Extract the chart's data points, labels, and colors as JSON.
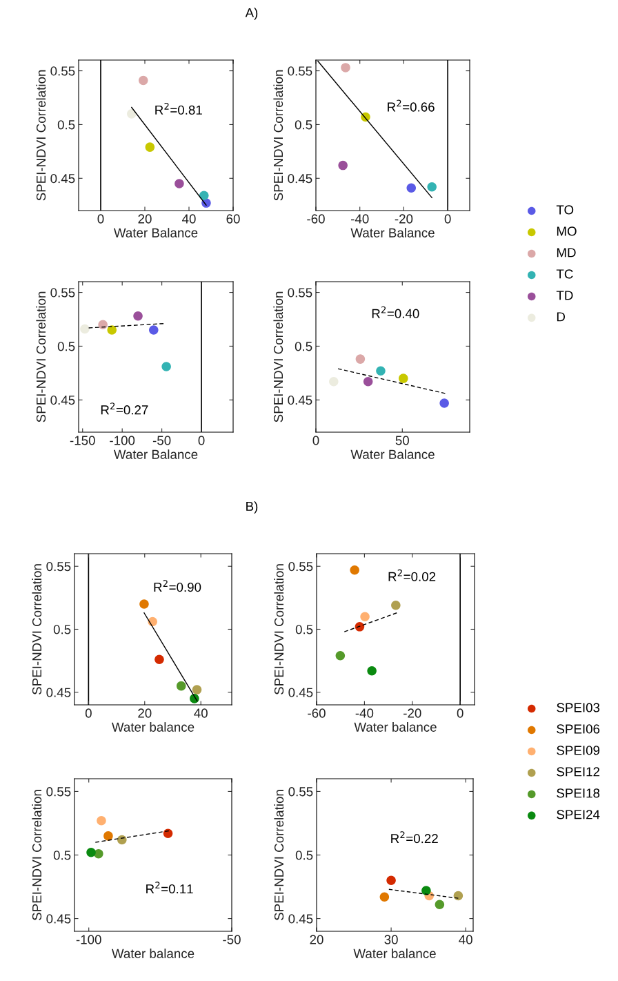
{
  "chart_data": [
    {
      "type": "scatter",
      "xlabel": "Water Balance",
      "ylabel": "SPEI-NDVI Correlation",
      "xlim": [
        -10,
        60
      ],
      "xticks": [
        0,
        20,
        40,
        60
      ],
      "ylim": [
        0.42,
        0.56
      ],
      "yticks": [
        0.45,
        0.5,
        0.55
      ],
      "marker": "circle",
      "grid": false,
      "ref_lines": [
        {
          "axis": "x",
          "value": 0,
          "color": "#000000"
        }
      ],
      "annotations": [
        "A)",
        "R$^{2}$=0.81"
      ],
      "legend": "right",
      "series": [
        {
          "name": "TO",
          "color": "#5a5ae6",
          "x": [
            47.8
          ],
          "values": [
            0.427
          ]
        },
        {
          "name": "MO",
          "color": "#c8c800",
          "x": [
            22.3
          ],
          "values": [
            0.479
          ]
        },
        {
          "name": "MD",
          "color": "#dba8a8",
          "x": [
            19.3
          ],
          "values": [
            0.541
          ]
        },
        {
          "name": "TC",
          "color": "#33b3b3",
          "x": [
            46.8
          ],
          "values": [
            0.434
          ]
        },
        {
          "name": "TD",
          "color": "#9a4f9a",
          "x": [
            35.6
          ],
          "values": [
            0.445
          ]
        },
        {
          "name": "D",
          "color": "#ececdf",
          "x": [
            14.0
          ],
          "values": [
            0.51
          ]
        },
        {
          "type": "line",
          "color": "#000000",
          "line_style": "solid",
          "marker": "none",
          "x": [
            14.0,
            47.8
          ],
          "values": [
            0.516,
            0.425
          ]
        }
      ]
    },
    {
      "type": "scatter",
      "xlabel": "Water Balance",
      "ylabel": "SPEI-NDVI Correlation",
      "xlim": [
        -60,
        10
      ],
      "xticks": [
        -60,
        -40,
        -20,
        0
      ],
      "ylim": [
        0.42,
        0.56
      ],
      "yticks": [
        0.45,
        0.5,
        0.55
      ],
      "marker": "circle",
      "grid": false,
      "ref_lines": [
        {
          "axis": "x",
          "value": 0,
          "color": "#000000"
        }
      ],
      "annotations": [
        "R$^{2}$=0.66"
      ],
      "series": [
        {
          "color": "#5a5ae6",
          "x": [
            -16.6
          ],
          "values": [
            0.441
          ]
        },
        {
          "color": "#c8c800",
          "x": [
            -37.4
          ],
          "values": [
            0.507
          ]
        },
        {
          "color": "#dba8a8",
          "x": [
            -46.5
          ],
          "values": [
            0.553
          ]
        },
        {
          "color": "#33b3b3",
          "x": [
            -7.2
          ],
          "values": [
            0.442
          ]
        },
        {
          "color": "#9a4f9a",
          "x": [
            -47.7
          ],
          "values": [
            0.462
          ]
        },
        {
          "type": "line",
          "color": "#000000",
          "line_style": "solid",
          "marker": "none",
          "x": [
            -59.1,
            -7.2
          ],
          "values": [
            0.559,
            0.432
          ]
        }
      ]
    },
    {
      "type": "scatter",
      "xlabel": "Water Balance",
      "ylabel": "SPEI-NDVI Correlation",
      "xlim": [
        -155,
        40
      ],
      "xticks": [
        -150,
        -100,
        -50,
        0
      ],
      "ylim": [
        0.42,
        0.56
      ],
      "yticks": [
        0.45,
        0.5,
        0.55
      ],
      "marker": "circle",
      "grid": false,
      "ref_lines": [
        {
          "axis": "x",
          "value": 0,
          "color": "#000000"
        }
      ],
      "annotations": [
        "R$^{2}$=0.27"
      ],
      "series": [
        {
          "color": "#5a5ae6",
          "x": [
            -60.3
          ],
          "values": [
            0.515
          ]
        },
        {
          "color": "#c8c800",
          "x": [
            -113
          ],
          "values": [
            0.515
          ]
        },
        {
          "color": "#dba8a8",
          "x": [
            -124.4
          ],
          "values": [
            0.52
          ]
        },
        {
          "color": "#33b3b3",
          "x": [
            -44.3
          ],
          "values": [
            0.481
          ]
        },
        {
          "color": "#9a4f9a",
          "x": [
            -80.1
          ],
          "values": [
            0.528
          ]
        },
        {
          "color": "#ececdf",
          "x": [
            -147.2
          ],
          "values": [
            0.516
          ]
        },
        {
          "type": "line",
          "color": "#000000",
          "line_style": "dashed",
          "marker": "none",
          "x": [
            -142.3,
            -47.9
          ],
          "values": [
            0.517,
            0.521
          ]
        }
      ]
    },
    {
      "type": "scatter",
      "xlabel": "Water Balance",
      "ylabel": "SPEI-NDVI Correlation",
      "xlim": [
        0,
        89
      ],
      "xticks": [
        0,
        50
      ],
      "ylim": [
        0.42,
        0.56
      ],
      "yticks": [
        0.45,
        0.5,
        0.55
      ],
      "marker": "circle",
      "grid": false,
      "annotations": [
        "R$^{2}$=0.40"
      ],
      "series": [
        {
          "color": "#5a5ae6",
          "x": [
            74.3
          ],
          "values": [
            0.447
          ]
        },
        {
          "color": "#c8c800",
          "x": [
            50.6
          ],
          "values": [
            0.47
          ]
        },
        {
          "color": "#dba8a8",
          "x": [
            25.7
          ],
          "values": [
            0.488
          ]
        },
        {
          "color": "#33b3b3",
          "x": [
            37.5
          ],
          "values": [
            0.477
          ]
        },
        {
          "color": "#9a4f9a",
          "x": [
            30.2
          ],
          "values": [
            0.467
          ]
        },
        {
          "color": "#ececdf",
          "x": [
            10.3
          ],
          "values": [
            0.467
          ]
        },
        {
          "type": "line",
          "color": "#000000",
          "line_style": "dashed",
          "marker": "none",
          "x": [
            12.8,
            74.8
          ],
          "values": [
            0.479,
            0.456
          ]
        }
      ]
    },
    {
      "type": "scatter",
      "xlabel": "Water balance",
      "ylabel": "SPEI-NDVI Correlation",
      "xlim": [
        -5,
        51
      ],
      "xticks": [
        0,
        20,
        40
      ],
      "ylim": [
        0.44,
        0.56
      ],
      "yticks": [
        0.45,
        0.5,
        0.55
      ],
      "marker": "circle",
      "grid": false,
      "ref_lines": [
        {
          "axis": "x",
          "value": 0,
          "color": "#000000"
        }
      ],
      "annotations": [
        "B)",
        "R$^{2}$=0.90"
      ],
      "legend": "right",
      "series": [
        {
          "name": "SPEI03",
          "color": "#d42a00",
          "x": [
            25.2
          ],
          "values": [
            0.476
          ]
        },
        {
          "name": "SPEI06",
          "color": "#e07800",
          "x": [
            19.8
          ],
          "values": [
            0.52
          ]
        },
        {
          "name": "SPEI09",
          "color": "#ffb070",
          "x": [
            22.8
          ],
          "values": [
            0.506
          ]
        },
        {
          "name": "SPEI12",
          "color": "#b0a050",
          "x": [
            38.6
          ],
          "values": [
            0.452
          ]
        },
        {
          "name": "SPEI18",
          "color": "#559a2a",
          "x": [
            33.0
          ],
          "values": [
            0.455
          ]
        },
        {
          "name": "SPEI24",
          "color": "#0a8a10",
          "x": [
            37.7
          ],
          "values": [
            0.445
          ]
        },
        {
          "type": "line",
          "color": "#000000",
          "line_style": "solid",
          "marker": "none",
          "x": [
            19.8,
            38.7
          ],
          "values": [
            0.513,
            0.443
          ]
        }
      ]
    },
    {
      "type": "scatter",
      "xlabel": "Water balance",
      "ylabel": "SPEI-NDVI Correlation",
      "xlim": [
        -60,
        6
      ],
      "xticks": [
        -60,
        -40,
        -20,
        0
      ],
      "ylim": [
        0.44,
        0.56
      ],
      "yticks": [
        0.45,
        0.5,
        0.55
      ],
      "marker": "circle",
      "grid": false,
      "ref_lines": [
        {
          "axis": "x",
          "value": 0,
          "color": "#000000"
        }
      ],
      "annotations": [
        "R$^{2}$=0.02"
      ],
      "series": [
        {
          "color": "#d42a00",
          "x": [
            -42.0
          ],
          "values": [
            0.502
          ]
        },
        {
          "color": "#e07800",
          "x": [
            -44.1
          ],
          "values": [
            0.547
          ]
        },
        {
          "color": "#ffb070",
          "x": [
            -39.8
          ],
          "values": [
            0.51
          ]
        },
        {
          "color": "#b0a050",
          "x": [
            -26.9
          ],
          "values": [
            0.519
          ]
        },
        {
          "color": "#559a2a",
          "x": [
            -50.1
          ],
          "values": [
            0.479
          ]
        },
        {
          "color": "#0a8a10",
          "x": [
            -36.9
          ],
          "values": [
            0.467
          ]
        },
        {
          "type": "line",
          "color": "#000000",
          "line_style": "dashed",
          "marker": "none",
          "x": [
            -48.4,
            -26.5
          ],
          "values": [
            0.498,
            0.513
          ]
        }
      ]
    },
    {
      "type": "scatter",
      "xlabel": "Water balance",
      "ylabel": "SPEI-NDVI Correlation",
      "xlim": [
        -105,
        -50
      ],
      "xticks": [
        -100,
        -50
      ],
      "ylim": [
        0.44,
        0.56
      ],
      "yticks": [
        0.45,
        0.5,
        0.55
      ],
      "marker": "circle",
      "grid": false,
      "annotations": [
        "R$^{2}$=0.11"
      ],
      "series": [
        {
          "color": "#d42a00",
          "x": [
            -72.3
          ],
          "values": [
            0.517
          ]
        },
        {
          "color": "#e07800",
          "x": [
            -93.2
          ],
          "values": [
            0.515
          ]
        },
        {
          "color": "#ffb070",
          "x": [
            -95.6
          ],
          "values": [
            0.527
          ]
        },
        {
          "color": "#b0a050",
          "x": [
            -88.4
          ],
          "values": [
            0.512
          ]
        },
        {
          "color": "#559a2a",
          "x": [
            -96.6
          ],
          "values": [
            0.501
          ]
        },
        {
          "color": "#0a8a10",
          "x": [
            -99.2
          ],
          "values": [
            0.502
          ]
        },
        {
          "type": "line",
          "color": "#000000",
          "line_style": "dashed",
          "marker": "none",
          "x": [
            -97.7,
            -72.0
          ],
          "values": [
            0.51,
            0.519
          ]
        }
      ]
    },
    {
      "type": "scatter",
      "xlabel": "Water balance",
      "ylabel": "SPEI-NDVI Correlation",
      "xlim": [
        20,
        41
      ],
      "xticks": [
        20,
        30,
        40
      ],
      "ylim": [
        0.44,
        0.56
      ],
      "yticks": [
        0.45,
        0.5,
        0.55
      ],
      "marker": "circle",
      "grid": false,
      "annotations": [
        "R$^{2}$=0.22"
      ],
      "series": [
        {
          "color": "#d42a00",
          "x": [
            30.0
          ],
          "values": [
            0.48
          ]
        },
        {
          "color": "#e07800",
          "x": [
            29.1
          ],
          "values": [
            0.467
          ]
        },
        {
          "color": "#ffb070",
          "x": [
            35.1
          ],
          "values": [
            0.468
          ]
        },
        {
          "color": "#b0a050",
          "x": [
            39.0
          ],
          "values": [
            0.468
          ]
        },
        {
          "color": "#559a2a",
          "x": [
            36.5
          ],
          "values": [
            0.461
          ]
        },
        {
          "color": "#0a8a10",
          "x": [
            34.7
          ],
          "values": [
            0.472
          ]
        },
        {
          "type": "line",
          "color": "#000000",
          "line_style": "dashed",
          "marker": "none",
          "x": [
            29.7,
            39.0
          ],
          "values": [
            0.473,
            0.466
          ]
        }
      ]
    }
  ]
}
